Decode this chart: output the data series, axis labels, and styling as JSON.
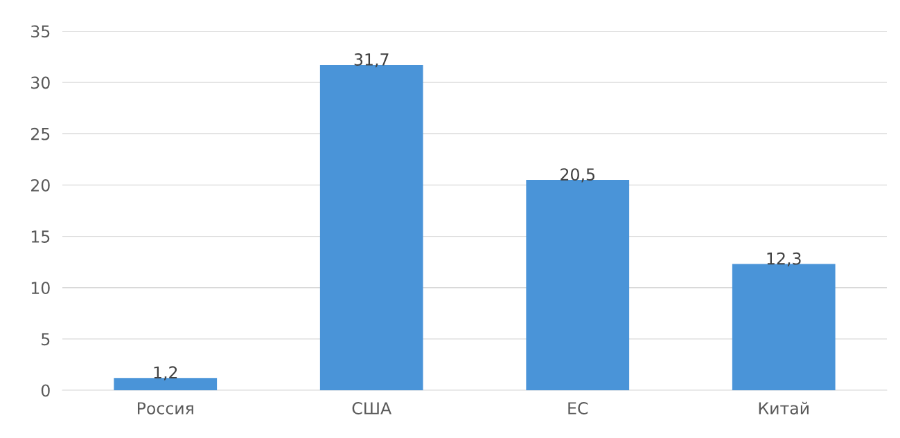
{
  "chart_data": {
    "type": "bar",
    "categories": [
      "Россия",
      "США",
      "ЕС",
      "Китай"
    ],
    "values": [
      1.2,
      31.7,
      20.5,
      12.3
    ],
    "value_labels": [
      "1,2",
      "31,7",
      "20,5",
      "12,3"
    ],
    "color": "#4a94d8",
    "ylim": [
      0,
      35
    ],
    "yticks": [
      0,
      5,
      10,
      15,
      20,
      25,
      30,
      35
    ],
    "grid": "y",
    "legend": false
  }
}
